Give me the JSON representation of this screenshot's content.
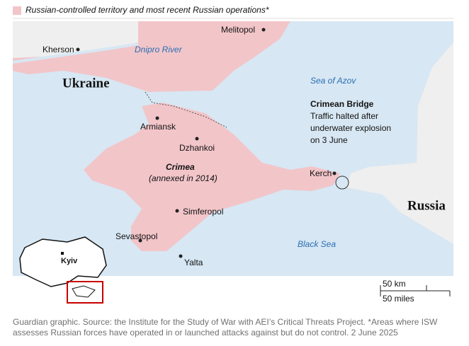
{
  "legend": {
    "label": "Russian-controlled territory and most recent Russian operations*"
  },
  "places": {
    "kherson": "Kherson",
    "dnipro": "Dnipro River",
    "melitopol": "Melitopol",
    "ukraine": "Ukraine",
    "azov": "Sea of Azov",
    "armiansk": "Armiansk",
    "dzhankoi": "Dzhankoi",
    "crimea": "Crimea",
    "annexed": "(annexed in 2014)",
    "kerch": "Kerch",
    "russia": "Russia",
    "simferopol": "Simferopol",
    "sevastopol": "Sevastopol",
    "black_sea": "Black Sea",
    "yalta": "Yalta",
    "kyiv": "Kyiv"
  },
  "annotation": {
    "title": "Crimean Bridge",
    "lines": [
      "Traffic halted after",
      "underwater explosion",
      "on 3 June"
    ]
  },
  "scale": {
    "km": "50 km",
    "miles": "50 miles"
  },
  "source": [
    "Guardian graphic. Source: the Institute for the Study of War with AEI’s Critical Threats Project. *Areas where ISW",
    "assesses Russian forces have operated in or launched attacks against but do not control. 2 June 2025"
  ]
}
